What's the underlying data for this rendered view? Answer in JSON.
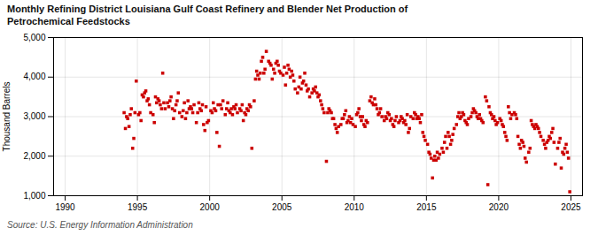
{
  "chart_data": {
    "type": "scatter",
    "title": "Monthly Refining District Louisiana Gulf Coast Refinery and Blender Net Production of\nPetrochemical Feedstocks",
    "ylabel": "Thousand Barrels",
    "caption": "Source: U.S. Energy Information Administration",
    "color": "#cc0000",
    "marker": "square",
    "grid": true,
    "xlim": [
      1989.2,
      2025.8
    ],
    "xticks": [
      1990,
      1995,
      2000,
      2005,
      2010,
      2015,
      2020,
      2025
    ],
    "ylim": [
      1000,
      5000
    ],
    "yticks": [
      {
        "value": 1000,
        "label": "1,000"
      },
      {
        "value": 2000,
        "label": "2,000"
      },
      {
        "value": 3000,
        "label": "3,000"
      },
      {
        "value": 4000,
        "label": "4,000"
      },
      {
        "value": 5000,
        "label": "5,000"
      }
    ],
    "x": [
      1994.08,
      1994.17,
      1994.25,
      1994.33,
      1994.42,
      1994.5,
      1994.58,
      1994.67,
      1994.75,
      1994.83,
      1994.92,
      1995.08,
      1995.17,
      1995.25,
      1995.33,
      1995.42,
      1995.5,
      1995.58,
      1995.67,
      1995.75,
      1995.83,
      1995.92,
      1996.08,
      1996.17,
      1996.25,
      1996.33,
      1996.42,
      1996.5,
      1996.58,
      1996.67,
      1996.75,
      1996.83,
      1996.92,
      1997.08,
      1997.17,
      1997.25,
      1997.33,
      1997.42,
      1997.5,
      1997.58,
      1997.67,
      1997.75,
      1997.83,
      1997.92,
      1998.08,
      1998.17,
      1998.25,
      1998.33,
      1998.42,
      1998.5,
      1998.58,
      1998.67,
      1998.75,
      1998.83,
      1998.92,
      1999.08,
      1999.17,
      1999.25,
      1999.33,
      1999.42,
      1999.5,
      1999.58,
      1999.67,
      1999.75,
      1999.83,
      1999.92,
      2000.08,
      2000.17,
      2000.25,
      2000.33,
      2000.42,
      2000.5,
      2000.58,
      2000.67,
      2000.75,
      2000.83,
      2000.92,
      2001.08,
      2001.17,
      2001.25,
      2001.33,
      2001.42,
      2001.5,
      2001.58,
      2001.67,
      2001.75,
      2001.83,
      2001.92,
      2002.08,
      2002.17,
      2002.25,
      2002.33,
      2002.42,
      2002.5,
      2002.58,
      2002.67,
      2002.75,
      2002.83,
      2002.92,
      2003.08,
      2003.17,
      2003.25,
      2003.33,
      2003.42,
      2003.5,
      2003.58,
      2003.67,
      2003.75,
      2003.83,
      2003.92,
      2004.08,
      2004.17,
      2004.25,
      2004.33,
      2004.42,
      2004.5,
      2004.58,
      2004.67,
      2004.75,
      2004.83,
      2004.92,
      2005.08,
      2005.17,
      2005.25,
      2005.33,
      2005.42,
      2005.5,
      2005.58,
      2005.67,
      2005.75,
      2005.83,
      2005.92,
      2006.08,
      2006.17,
      2006.25,
      2006.33,
      2006.42,
      2006.5,
      2006.58,
      2006.67,
      2006.75,
      2006.83,
      2006.92,
      2007.08,
      2007.17,
      2007.25,
      2007.33,
      2007.42,
      2007.5,
      2007.58,
      2007.67,
      2007.75,
      2007.83,
      2007.92,
      2008.08,
      2008.17,
      2008.25,
      2008.33,
      2008.42,
      2008.5,
      2008.58,
      2008.67,
      2008.75,
      2008.83,
      2008.92,
      2009.08,
      2009.17,
      2009.25,
      2009.33,
      2009.42,
      2009.5,
      2009.58,
      2009.67,
      2009.75,
      2009.83,
      2009.92,
      2010.08,
      2010.17,
      2010.25,
      2010.33,
      2010.42,
      2010.5,
      2010.58,
      2010.67,
      2010.75,
      2010.83,
      2010.92,
      2011.08,
      2011.17,
      2011.25,
      2011.33,
      2011.42,
      2011.5,
      2011.58,
      2011.67,
      2011.75,
      2011.83,
      2011.92,
      2012.08,
      2012.17,
      2012.25,
      2012.33,
      2012.42,
      2012.5,
      2012.58,
      2012.67,
      2012.75,
      2012.83,
      2012.92,
      2013.08,
      2013.17,
      2013.25,
      2013.33,
      2013.42,
      2013.5,
      2013.58,
      2013.67,
      2013.75,
      2013.83,
      2013.92,
      2014.08,
      2014.17,
      2014.25,
      2014.33,
      2014.42,
      2014.5,
      2014.58,
      2014.67,
      2014.75,
      2014.83,
      2014.92,
      2015.08,
      2015.17,
      2015.25,
      2015.33,
      2015.42,
      2015.5,
      2015.58,
      2015.67,
      2015.75,
      2015.83,
      2015.92,
      2016.08,
      2016.17,
      2016.25,
      2016.33,
      2016.42,
      2016.5,
      2016.58,
      2016.67,
      2016.75,
      2016.83,
      2016.92,
      2017.08,
      2017.17,
      2017.25,
      2017.33,
      2017.42,
      2017.5,
      2017.58,
      2017.67,
      2017.75,
      2017.83,
      2017.92,
      2018.08,
      2018.17,
      2018.25,
      2018.33,
      2018.42,
      2018.5,
      2018.58,
      2018.67,
      2018.75,
      2018.83,
      2018.92,
      2019.08,
      2019.17,
      2019.25,
      2019.33,
      2019.42,
      2019.5,
      2019.58,
      2019.67,
      2019.75,
      2019.83,
      2019.92,
      2020.08,
      2020.17,
      2020.25,
      2020.33,
      2020.42,
      2020.5,
      2020.58,
      2020.67,
      2020.75,
      2020.83,
      2020.92,
      2021.08,
      2021.17,
      2021.25,
      2021.33,
      2021.42,
      2021.5,
      2021.58,
      2021.67,
      2021.75,
      2021.83,
      2021.92,
      2022.08,
      2022.17,
      2022.25,
      2022.33,
      2022.42,
      2022.5,
      2022.58,
      2022.67,
      2022.75,
      2022.83,
      2022.92,
      2023.08,
      2023.17,
      2023.25,
      2023.33,
      2023.42,
      2023.5,
      2023.58,
      2023.67,
      2023.75,
      2023.83,
      2023.92,
      2024.08,
      2024.17,
      2024.25,
      2024.33,
      2024.42,
      2024.5,
      2024.58,
      2024.67,
      2024.75,
      2024.83,
      2024.92
    ],
    "values": [
      3100,
      2700,
      3000,
      2950,
      2750,
      3050,
      3200,
      2200,
      2450,
      3100,
      3900,
      3050,
      3100,
      2900,
      3550,
      3500,
      3600,
      3650,
      3400,
      3450,
      3300,
      3100,
      3050,
      2850,
      3500,
      3350,
      3450,
      3400,
      3300,
      3200,
      4100,
      3350,
      3200,
      3350,
      3250,
      3400,
      3500,
      3200,
      2950,
      3150,
      3300,
      3400,
      3600,
      3100,
      3000,
      3150,
      3350,
      2950,
      3100,
      3400,
      3200,
      3250,
      3200,
      3100,
      3300,
      2850,
      3100,
      3350,
      3200,
      3150,
      3300,
      2800,
      2650,
      3250,
      2850,
      2900,
      3150,
      3100,
      3350,
      3200,
      3150,
      2600,
      3300,
      2250,
      3300,
      3200,
      3400,
      3050,
      3200,
      3350,
      3150,
      3100,
      3200,
      3050,
      3250,
      3200,
      3300,
      3100,
      3200,
      3150,
      3300,
      2900,
      3100,
      3050,
      3200,
      3150,
      3300,
      3250,
      2200,
      3400,
      3950,
      4150,
      4050,
      3950,
      4100,
      4400,
      4500,
      4100,
      4200,
      4650,
      4400,
      4350,
      4300,
      3950,
      4200,
      4100,
      4350,
      4400,
      4300,
      4150,
      4100,
      4050,
      4250,
      3800,
      4100,
      4300,
      4200,
      4000,
      4150,
      4050,
      3900,
      3700,
      3600,
      3750,
      4000,
      3700,
      3850,
      3900,
      4100,
      3800,
      3650,
      3700,
      3500,
      3600,
      3700,
      3650,
      3750,
      3600,
      3500,
      3550,
      3400,
      3300,
      3200,
      3100,
      1870,
      3100,
      3200,
      3150,
      3100,
      2950,
      2950,
      2800,
      2700,
      2600,
      2750,
      2800,
      2950,
      2950,
      3050,
      3150,
      2850,
      2900,
      3000,
      2850,
      2950,
      2800,
      2750,
      3050,
      3100,
      3200,
      3000,
      2900,
      3000,
      2800,
      2750,
      2900,
      2850,
      3400,
      3500,
      3350,
      3300,
      3450,
      3300,
      3200,
      3050,
      3100,
      3200,
      3000,
      2900,
      3000,
      2950,
      3100,
      3050,
      2900,
      2950,
      2800,
      2750,
      2900,
      3000,
      2850,
      2900,
      3000,
      2950,
      2850,
      2900,
      2800,
      3050,
      2600,
      2700,
      3000,
      2950,
      3100,
      3050,
      2950,
      3000,
      2950,
      2850,
      3050,
      2600,
      2500,
      2400,
      2300,
      2100,
      2050,
      1950,
      1450,
      1900,
      2000,
      1900,
      2100,
      1950,
      2050,
      2200,
      2100,
      2350,
      2500,
      2200,
      2600,
      2500,
      2300,
      2400,
      2550,
      2700,
      2800,
      3000,
      3100,
      2950,
      3000,
      3100,
      3050,
      2900,
      2850,
      2800,
      2950,
      3000,
      3100,
      3200,
      3150,
      3100,
      3000,
      2950,
      3050,
      2950,
      2900,
      2850,
      3500,
      3400,
      1280,
      3250,
      3100,
      3050,
      2950,
      3000,
      2900,
      2800,
      2850,
      2950,
      2900,
      2800,
      2750,
      2600,
      2500,
      2400,
      3250,
      3100,
      2950,
      3050,
      3100,
      3050,
      2950,
      2500,
      2300,
      2200,
      2400,
      2350,
      2250,
      1950,
      1850,
      2100,
      2200,
      2900,
      2800,
      2750,
      2700,
      2800,
      2750,
      2700,
      2600,
      2500,
      2400,
      2300,
      2200,
      2350,
      2400,
      2500,
      2450,
      2600,
      2700,
      2350,
      1800,
      2200,
      2350,
      2450,
      1700,
      2100,
      2050,
      2200,
      2300,
      2100,
      1950,
      1100
    ]
  }
}
